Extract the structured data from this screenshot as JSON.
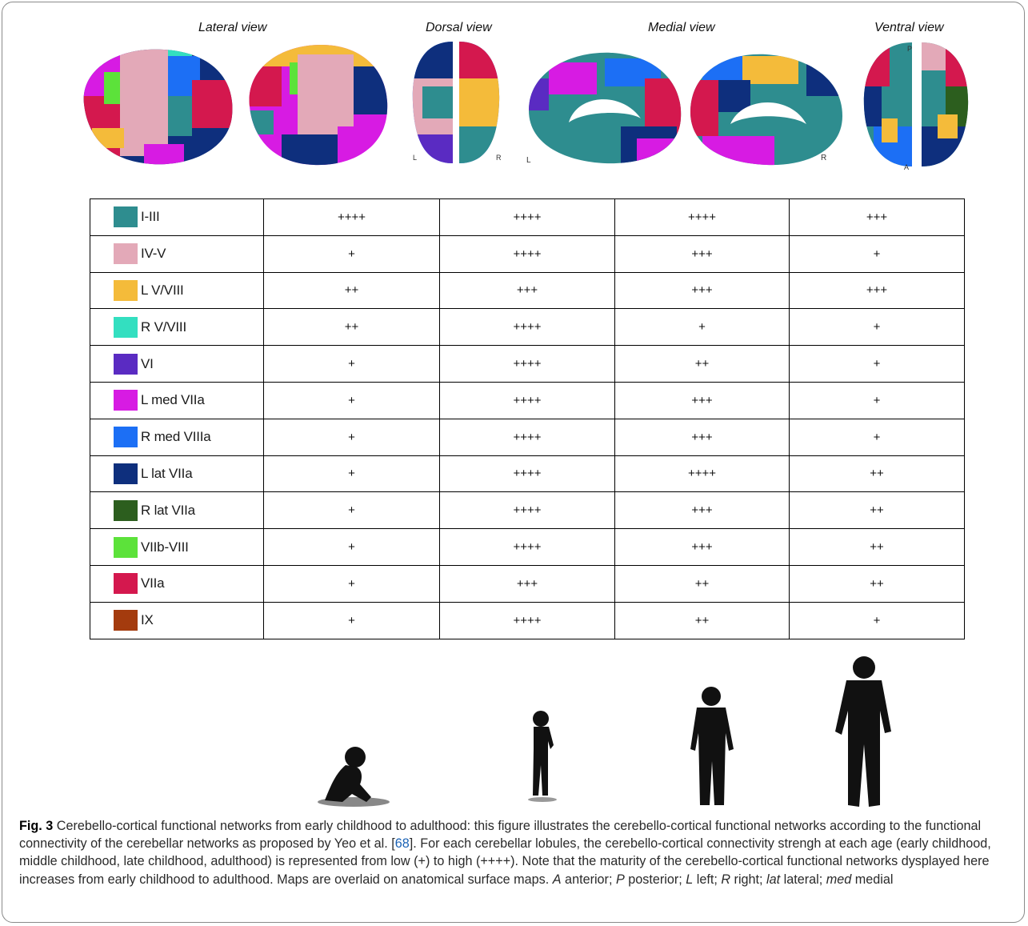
{
  "views": {
    "lateral": "Lateral view",
    "dorsal": "Dorsal view",
    "medial": "Medial view",
    "ventral": "Ventral view"
  },
  "orientation": {
    "dorsal_left": "L",
    "dorsal_right": "R",
    "medial_left": "L",
    "medial_right": "R",
    "ventral_posterior": "P",
    "ventral_anterior": "A"
  },
  "network_colors": {
    "I-III": "#2e8d8f",
    "IV-V": "#e3a9b8",
    "L V/VIII": "#f4bb3a",
    "R V/VIII": "#33dfc0",
    "VI": "#5a2bc2",
    "L med VIIa": "#d71be3",
    "R med VIIIa": "#1c6ff5",
    "L lat VIIa": "#0e2f7d",
    "R lat VIIa": "#2c5e1e",
    "VIIb-VIII": "#5ce23a",
    "VIIa": "#d4184e",
    "IX": "#a43b0e"
  },
  "table": {
    "rows": [
      {
        "name": "I-III",
        "color": "#2e8d8f",
        "values": [
          "++++",
          "++++",
          "++++",
          "+++"
        ]
      },
      {
        "name": "IV-V",
        "color": "#e3a9b8",
        "values": [
          "+",
          "++++",
          "+++",
          "+"
        ]
      },
      {
        "name": "L V/VIII",
        "color": "#f4bb3a",
        "values": [
          "++",
          "+++",
          "+++",
          "+++"
        ]
      },
      {
        "name": "R V/VIII",
        "color": "#33dfc0",
        "values": [
          "++",
          "++++",
          "+",
          "+"
        ]
      },
      {
        "name": "VI",
        "color": "#5a2bc2",
        "values": [
          "+",
          "++++",
          "++",
          "+"
        ]
      },
      {
        "name": "L med VIIa",
        "color": "#d71be3",
        "values": [
          "+",
          "++++",
          "+++",
          "+"
        ]
      },
      {
        "name": "R med VIIIa",
        "color": "#1c6ff5",
        "values": [
          "+",
          "++++",
          "+++",
          "+"
        ]
      },
      {
        "name": "L lat VIIa",
        "color": "#0e2f7d",
        "values": [
          "+",
          "++++",
          "++++",
          "++"
        ]
      },
      {
        "name": "R lat VIIa",
        "color": "#2c5e1e",
        "values": [
          "+",
          "++++",
          "+++",
          "++"
        ]
      },
      {
        "name": "VIIb-VIII",
        "color": "#5ce23a",
        "values": [
          "+",
          "++++",
          "+++",
          "++"
        ]
      },
      {
        "name": "VIIa",
        "color": "#d4184e",
        "values": [
          "+",
          "+++",
          "++",
          "++"
        ]
      },
      {
        "name": "IX",
        "color": "#a43b0e",
        "values": [
          "+",
          "++++",
          "++",
          "+"
        ]
      }
    ]
  },
  "caption": {
    "label": "Fig. 3",
    "text_1": "Cerebello-cortical functional networks from early childhood to adulthood: this figure illustrates the cerebello-cortical functional networks according to the functional connectivity of the cerebellar networks as proposed by Yeo et al. [",
    "ref": "68",
    "text_2": "]. For each cerebellar lobules, the cerebello-cortical connectivity strengh at each age (early childhood, middle childhood, late childhood, adulthood) is represented from low (+) to high (++++). Note that the maturity of the cerebello-cortical functional networks dysplayed here increases from early childhood to adulthood. Maps are overlaid on anatomical surface maps. ",
    "abbr_A": "A",
    "def_A": " anterior; ",
    "abbr_P": "P",
    "def_P": " posterior; ",
    "abbr_L": "L",
    "def_L": " left; ",
    "abbr_R": "R",
    "def_R": " right; ",
    "abbr_lat": "lat",
    "def_lat": " lateral; ",
    "abbr_med": "med",
    "def_med": " medial"
  }
}
